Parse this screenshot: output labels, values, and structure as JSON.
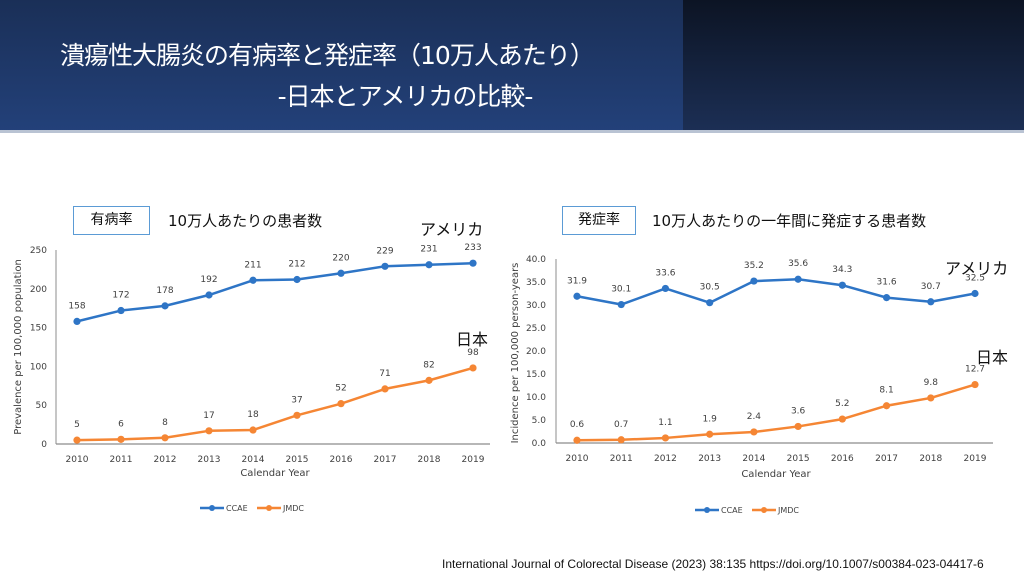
{
  "header": {
    "title_line1": "潰瘍性大腸炎の有病率と発症率（10万人あたり）",
    "title_line2": "-日本とアメリカの比較-"
  },
  "panels": {
    "left": {
      "tag": "有病率",
      "subtitle": "10万人あたりの患者数",
      "label_us": "アメリカ",
      "label_jp": "日本"
    },
    "right": {
      "tag": "発症率",
      "subtitle": "10万人あたりの一年間に発症する患者数",
      "label_us": "アメリカ",
      "label_jp": "日本"
    }
  },
  "citation": "International Journal of Colorectal Disease (2023) 38:135 https://doi.org/10.1007/s00384-023-04417-6",
  "colors": {
    "ccae": "#2e75c6",
    "jmdc": "#f58634",
    "axis": "#8c8c8c",
    "tag_border": "#5b9bd5"
  },
  "chart_data": [
    {
      "type": "line",
      "title": "有病率",
      "xlabel": "Calendar Year",
      "ylabel": "Prevalence per 100,000 population",
      "categories": [
        "2010",
        "2011",
        "2012",
        "2013",
        "2014",
        "2015",
        "2016",
        "2017",
        "2018",
        "2019"
      ],
      "ylim": [
        0,
        250
      ],
      "yticks": [
        0,
        50,
        100,
        150,
        200,
        250
      ],
      "ytick_labels": [
        "0",
        "50",
        "100",
        "150",
        "200",
        "250"
      ],
      "grid": false,
      "legend": "bottom-center",
      "series": [
        {
          "name": "CCAE",
          "values": [
            158,
            172,
            178,
            192,
            211,
            212,
            220,
            229,
            231,
            233
          ],
          "labels": [
            "158",
            "172",
            "178",
            "192",
            "211",
            "212",
            "220",
            "229",
            "231",
            "233"
          ]
        },
        {
          "name": "JMDC",
          "values": [
            5,
            6,
            8,
            17,
            18,
            37,
            52,
            71,
            82,
            98
          ],
          "labels": [
            "5",
            "6",
            "8",
            "17",
            "18",
            "37",
            "52",
            "71",
            "82",
            "98"
          ]
        }
      ]
    },
    {
      "type": "line",
      "title": "発症率",
      "xlabel": "Calendar Year",
      "ylabel": "Incidence per 100,000 person-years",
      "categories": [
        "2010",
        "2011",
        "2012",
        "2013",
        "2014",
        "2015",
        "2016",
        "2017",
        "2018",
        "2019"
      ],
      "ylim": [
        0,
        40
      ],
      "yticks": [
        0,
        5,
        10,
        15,
        20,
        25,
        30,
        35,
        40
      ],
      "ytick_labels": [
        "0.0",
        "5.0",
        "10.0",
        "15.0",
        "20.0",
        "25.0",
        "30.0",
        "35.0",
        "40.0"
      ],
      "grid": false,
      "legend": "bottom-center",
      "series": [
        {
          "name": "CCAE",
          "values": [
            31.9,
            30.1,
            33.6,
            30.5,
            35.2,
            35.6,
            34.3,
            31.6,
            30.7,
            32.5
          ],
          "labels": [
            "31.9",
            "30.1",
            "33.6",
            "30.5",
            "35.2",
            "35.6",
            "34.3",
            "31.6",
            "30.7",
            "32.5"
          ]
        },
        {
          "name": "JMDC",
          "values": [
            0.6,
            0.7,
            1.1,
            1.9,
            2.4,
            3.6,
            5.2,
            8.1,
            9.8,
            12.7
          ],
          "labels": [
            "0.6",
            "0.7",
            "1.1",
            "1.9",
            "2.4",
            "3.6",
            "5.2",
            "8.1",
            "9.8",
            "12.7"
          ]
        }
      ]
    }
  ]
}
